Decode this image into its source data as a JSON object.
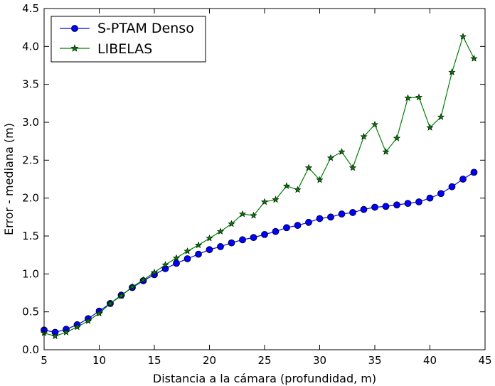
{
  "chart_data": {
    "type": "line",
    "xlabel": "Distancia a la cámara (profundidad, m)",
    "ylabel": "Error - mediana (m)",
    "xlim": [
      5,
      45
    ],
    "ylim": [
      0.0,
      4.5
    ],
    "x_ticks": [
      "5",
      "10",
      "15",
      "20",
      "25",
      "30",
      "35",
      "40",
      "45"
    ],
    "y_ticks": [
      "0.0",
      "0.5",
      "1.0",
      "1.5",
      "2.0",
      "2.5",
      "3.0",
      "3.5",
      "4.0",
      "4.5"
    ],
    "grid": false,
    "legend_position": "top-left",
    "x": [
      5,
      6,
      7,
      8,
      9,
      10,
      11,
      12,
      13,
      14,
      15,
      16,
      17,
      18,
      19,
      20,
      21,
      22,
      23,
      24,
      25,
      26,
      27,
      28,
      29,
      30,
      31,
      32,
      33,
      34,
      35,
      36,
      37,
      38,
      39,
      40,
      41,
      42,
      43,
      44
    ],
    "series": [
      {
        "name": "S-PTAM Denso",
        "color": "#0000ff",
        "marker": "circle",
        "values": [
          0.26,
          0.23,
          0.27,
          0.33,
          0.41,
          0.51,
          0.61,
          0.72,
          0.82,
          0.91,
          0.99,
          1.07,
          1.14,
          1.2,
          1.26,
          1.32,
          1.36,
          1.41,
          1.45,
          1.48,
          1.52,
          1.56,
          1.61,
          1.64,
          1.68,
          1.73,
          1.75,
          1.79,
          1.81,
          1.85,
          1.88,
          1.89,
          1.91,
          1.93,
          1.95,
          2.0,
          2.06,
          2.15,
          2.25,
          2.34
        ]
      },
      {
        "name": "LIBELAS",
        "color": "#007f00",
        "marker": "star",
        "values": [
          0.22,
          0.18,
          0.23,
          0.3,
          0.38,
          0.48,
          0.61,
          0.71,
          0.83,
          0.92,
          1.02,
          1.12,
          1.21,
          1.3,
          1.38,
          1.47,
          1.56,
          1.66,
          1.79,
          1.77,
          1.95,
          1.98,
          2.16,
          2.11,
          2.4,
          2.24,
          2.53,
          2.61,
          2.4,
          2.81,
          2.97,
          2.61,
          2.79,
          3.32,
          3.33,
          2.93,
          3.07,
          3.66,
          4.13,
          3.84
        ]
      }
    ]
  }
}
